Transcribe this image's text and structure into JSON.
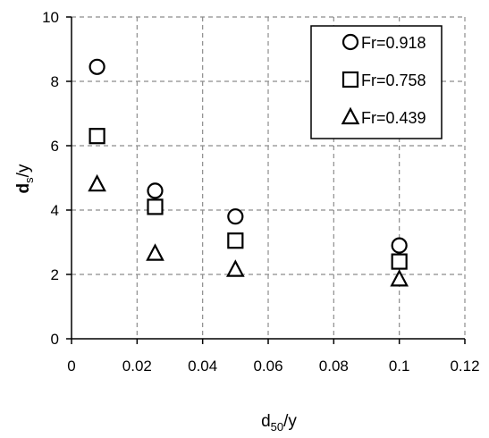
{
  "chart_data": {
    "type": "scatter",
    "xlabel": {
      "main": "d",
      "sub": "50",
      "rest": "/y"
    },
    "ylabel": {
      "main": "d",
      "sub": "s",
      "rest": "/y"
    },
    "xlim": [
      0,
      0.12
    ],
    "ylim": [
      0,
      10
    ],
    "x_ticks": [
      "0",
      "0.02",
      "0.04",
      "0.06",
      "0.08",
      "0.1",
      "0.12"
    ],
    "y_ticks": [
      "0",
      "2",
      "4",
      "6",
      "8",
      "10"
    ],
    "grid": true,
    "legend_position": "top-right",
    "series": [
      {
        "name": "Fr=0.918",
        "marker": "circle",
        "x": [
          0.0078,
          0.0255,
          0.05,
          0.1
        ],
        "y": [
          8.45,
          4.6,
          3.8,
          2.9
        ]
      },
      {
        "name": "Fr=0.758",
        "marker": "square",
        "x": [
          0.0078,
          0.0255,
          0.05,
          0.1
        ],
        "y": [
          6.3,
          4.1,
          3.05,
          2.4
        ]
      },
      {
        "name": "Fr=0.439",
        "marker": "triangle",
        "x": [
          0.0078,
          0.0255,
          0.05,
          0.1
        ],
        "y": [
          4.8,
          2.65,
          2.15,
          1.85
        ]
      }
    ]
  }
}
